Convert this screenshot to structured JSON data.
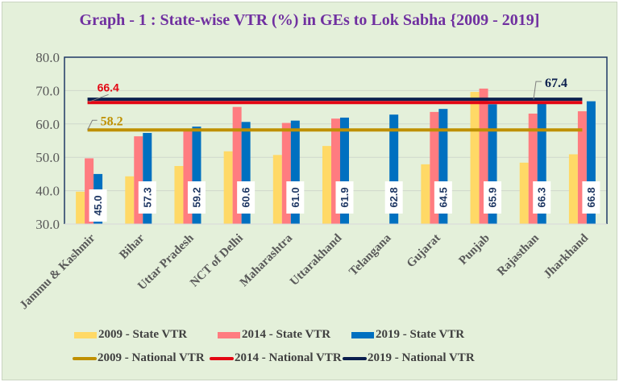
{
  "chart_data": {
    "type": "bar",
    "title": "Graph - 1 : State-wise VTR (%) in GEs to Lok Sabha {2009 - 2019]",
    "xlabel": "",
    "ylabel": "",
    "ylim": [
      30,
      80
    ],
    "yticks": [
      "30.0",
      "40.0",
      "50.0",
      "60.0",
      "70.0",
      "80.0"
    ],
    "ytick_values": [
      30,
      40,
      50,
      60,
      70,
      80
    ],
    "grid": true,
    "legend_position": "bottom",
    "categories": [
      "Jammu & Kashmir",
      "Bihar",
      "Uttar Pradesh",
      "NCT of Delhi",
      "Maharashtra",
      "Uttarakhand",
      "Telangana",
      "Gujarat",
      "Punjab",
      "Rajasthan",
      "Jharkhand"
    ],
    "series": [
      {
        "name": "2009 - State VTR",
        "kind": "bar",
        "color": "#ffd966",
        "values": [
          39.7,
          44.3,
          47.4,
          51.8,
          50.7,
          53.4,
          null,
          47.9,
          69.6,
          48.4,
          50.9
        ]
      },
      {
        "name": "2014 - State VTR",
        "kind": "bar",
        "color": "#ff7c80",
        "values": [
          49.7,
          56.3,
          58.4,
          65.1,
          60.3,
          61.6,
          null,
          63.6,
          70.6,
          63.1,
          63.8
        ]
      },
      {
        "name": "2019 - State VTR",
        "kind": "bar",
        "color": "#0070c0",
        "values": [
          45.0,
          57.3,
          59.2,
          60.6,
          61.0,
          61.9,
          62.8,
          64.5,
          65.9,
          66.3,
          66.8
        ],
        "labels": [
          "45.0",
          "57.3",
          "59.2",
          "60.6",
          "61.0",
          "61.9",
          "62.8",
          "64.5",
          "65.9",
          "66.3",
          "66.8"
        ]
      },
      {
        "name": "2009 - National VTR",
        "kind": "line",
        "color": "#bf9000",
        "value": 58.2,
        "label": "58.2"
      },
      {
        "name": "2014 - National VTR",
        "kind": "line",
        "color": "#e30613",
        "value": 66.4,
        "label": "66.4"
      },
      {
        "name": "2019 - National VTR",
        "kind": "line",
        "color": "#0b1f4e",
        "value": 67.4,
        "label": "67.4"
      }
    ]
  }
}
